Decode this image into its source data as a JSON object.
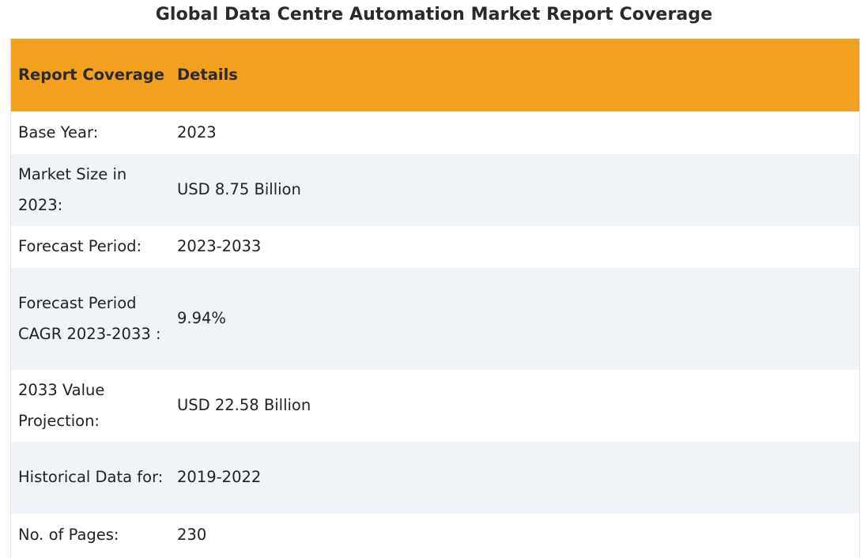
{
  "title": "Global Data Centre Automation Market Report Coverage",
  "table": {
    "headers": [
      "Report Coverage",
      "Details"
    ],
    "header_color": "#f4a01f",
    "rows": [
      {
        "label": "Base Year:",
        "value": "2023"
      },
      {
        "label": "Market Size in 2023:",
        "value": "USD 8.75 Billion"
      },
      {
        "label": "Forecast Period:",
        "value": "2023-2033"
      },
      {
        "label": "Forecast Period CAGR 2023-2033 :",
        "value": "9.94%"
      },
      {
        "label": "2033 Value Projection:",
        "value": "USD 22.58 Billion"
      },
      {
        "label": "Historical Data for:",
        "value": "2019-2022"
      },
      {
        "label": "No. of Pages:",
        "value": "230"
      }
    ]
  }
}
